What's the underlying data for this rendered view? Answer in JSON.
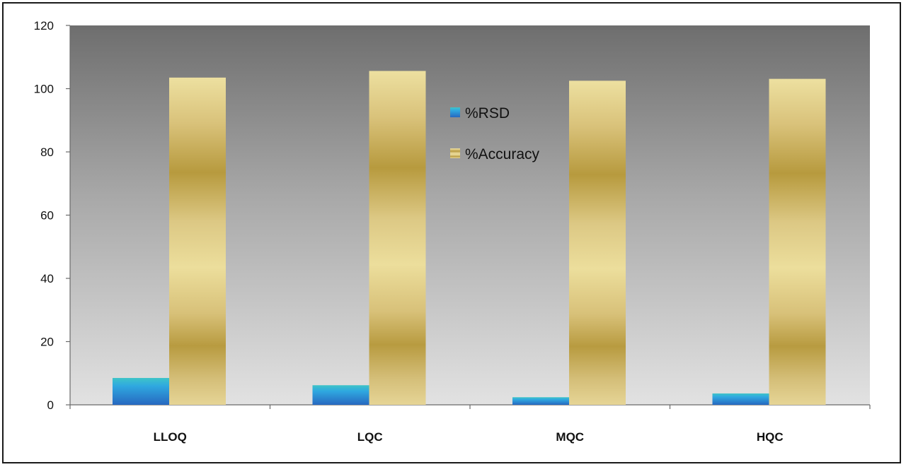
{
  "chart_data": {
    "type": "bar",
    "categories": [
      "LLOQ",
      "LQC",
      "MQC",
      "HQC"
    ],
    "series": [
      {
        "name": "%RSD",
        "values": [
          8.5,
          6.2,
          2.4,
          3.6
        ]
      },
      {
        "name": "%Accuracy",
        "values": [
          103.5,
          105.6,
          102.5,
          103.1
        ]
      }
    ],
    "y_ticks": [
      "0",
      "20",
      "40",
      "60",
      "80",
      "100",
      "120"
    ],
    "ylim": [
      0,
      120
    ],
    "title": "",
    "xlabel": "",
    "ylabel": "",
    "legend_position": "top-center",
    "grid": false,
    "colors": {
      "rsd": "#2f86d2",
      "accuracy": "#d8c372",
      "plot_background_top": "#6f6f6f",
      "plot_background_bottom": "#dedede"
    }
  }
}
